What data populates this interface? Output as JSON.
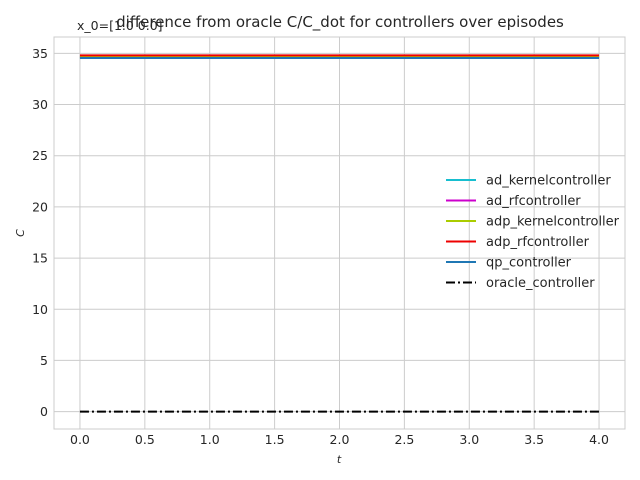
{
  "chart_data": {
    "type": "line",
    "title": "difference from oracle C/C_dot for controllers over episodes",
    "subtitle": "x_0=[1.0 0.0]",
    "xlabel": "t",
    "ylabel": "C",
    "xlim": [
      -0.2,
      4.2
    ],
    "ylim": [
      -1.7,
      36.6
    ],
    "xticks": [
      "0.0",
      "0.5",
      "1.0",
      "1.5",
      "2.0",
      "2.5",
      "3.0",
      "3.5",
      "4.0"
    ],
    "yticks": [
      "0",
      "5",
      "10",
      "15",
      "20",
      "25",
      "30",
      "35"
    ],
    "grid": true,
    "legend_position": "center-right",
    "x": [
      0.0,
      4.0
    ],
    "series": [
      {
        "name": "ad_kernelcontroller",
        "color": "#17becf",
        "dash": "solid",
        "values": [
          34.6,
          34.6
        ]
      },
      {
        "name": "ad_rfcontroller",
        "color": "#cc00cc",
        "dash": "solid",
        "values": [
          34.7,
          34.7
        ]
      },
      {
        "name": "adp_kernelcontroller",
        "color": "#aacc00",
        "dash": "solid",
        "values": [
          34.65,
          34.65
        ]
      },
      {
        "name": "adp_rfcontroller",
        "color": "#ee0000",
        "dash": "solid",
        "values": [
          34.8,
          34.8
        ]
      },
      {
        "name": "qp_controller",
        "color": "#1f77b4",
        "dash": "solid",
        "values": [
          34.55,
          34.55
        ]
      },
      {
        "name": "oracle_controller",
        "color": "#000000",
        "dash": "dashdot",
        "values": [
          0.0,
          0.0
        ]
      }
    ]
  }
}
